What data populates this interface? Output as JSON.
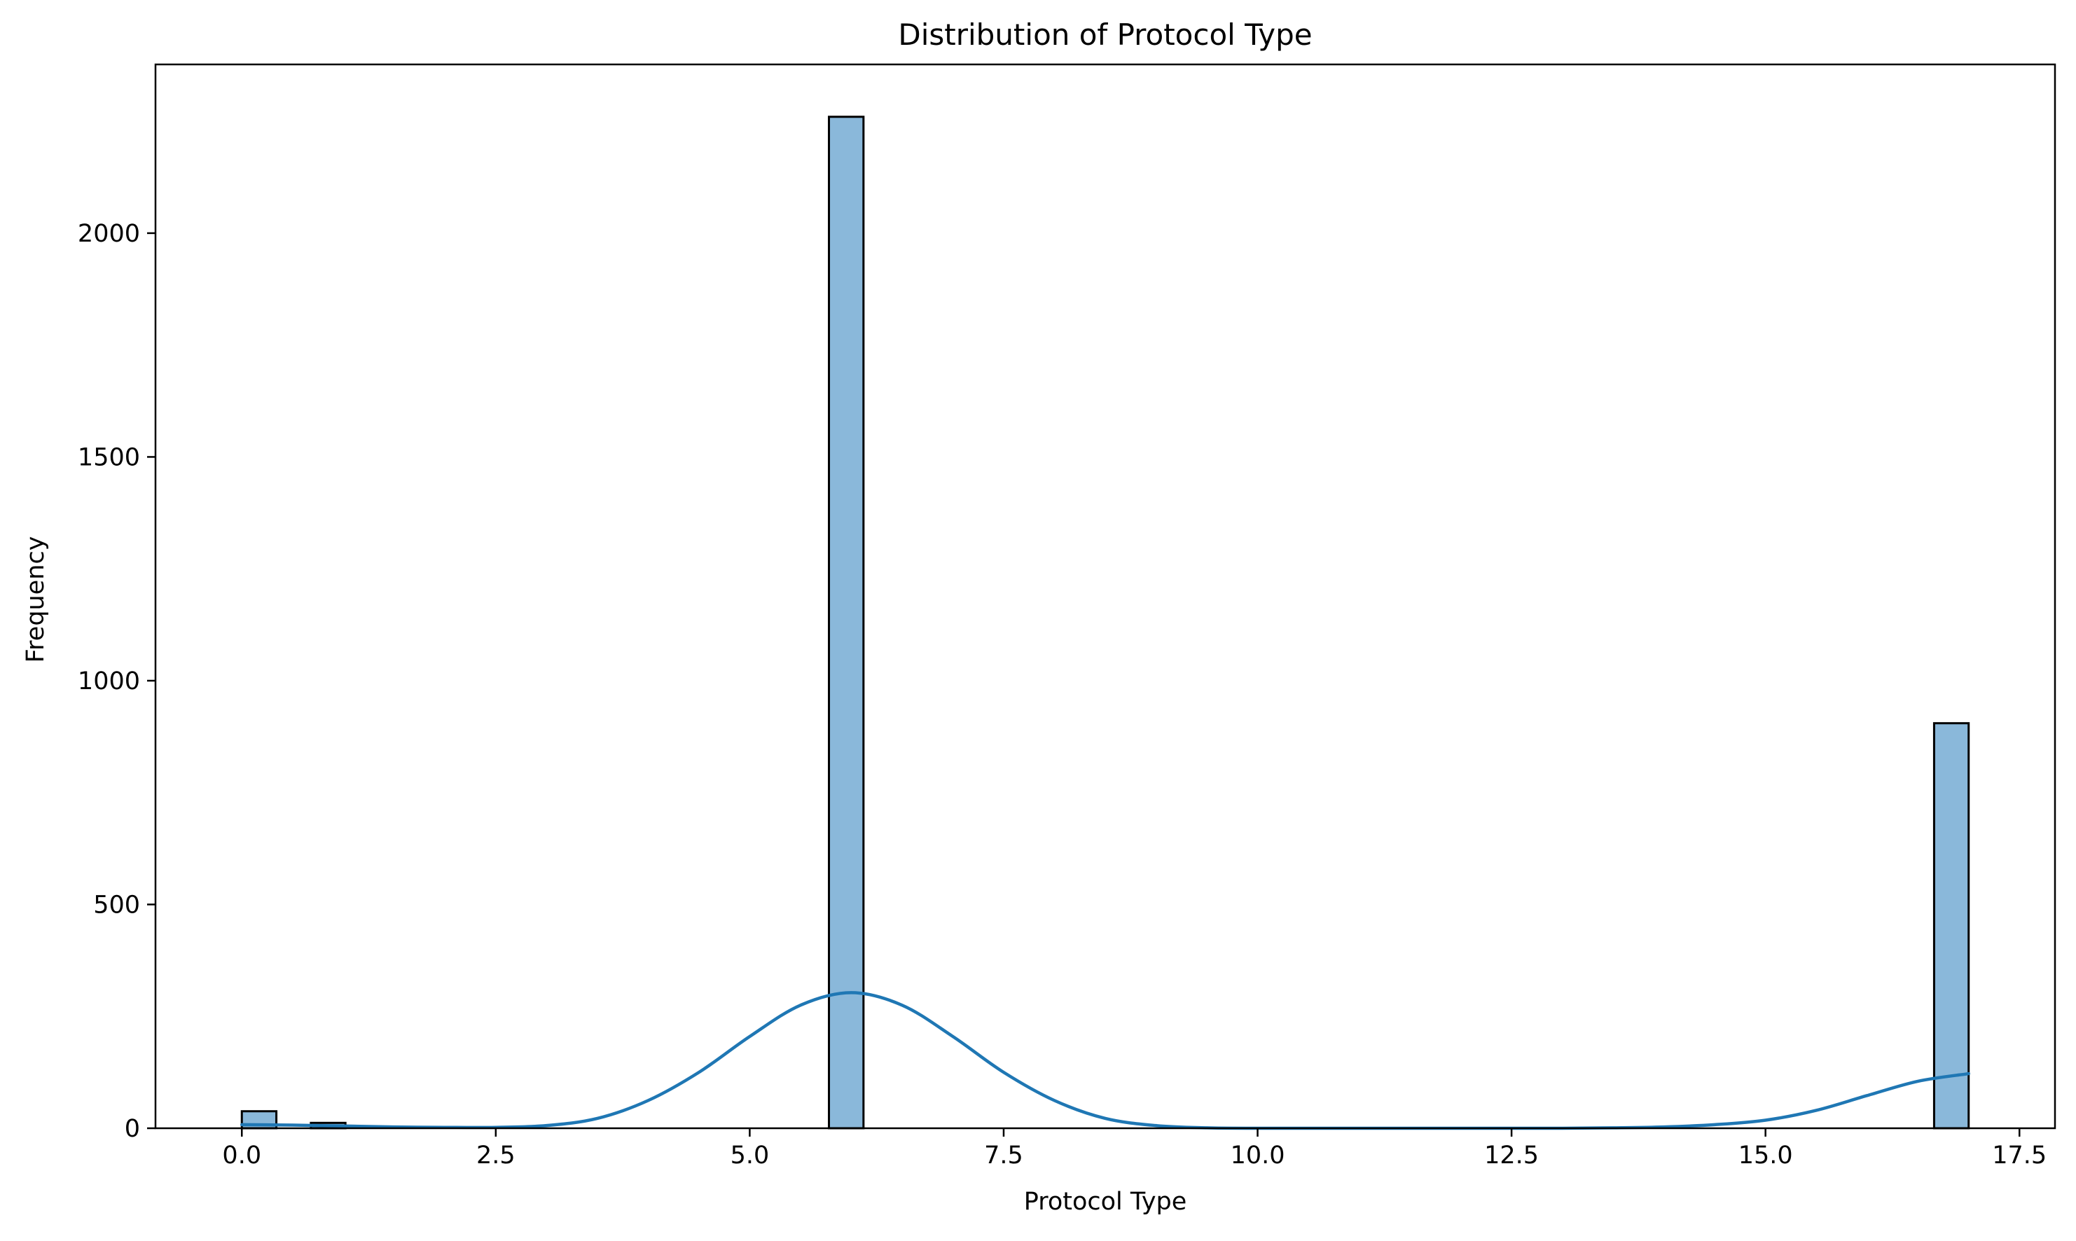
{
  "chart_data": {
    "type": "bar",
    "title": "Distribution of Protocol Type",
    "xlabel": "Protocol Type",
    "ylabel": "Frequency",
    "xlim": [
      -0.85,
      17.85
    ],
    "ylim": [
      0,
      2377
    ],
    "xticks": [
      0.0,
      2.5,
      5.0,
      7.5,
      10.0,
      12.5,
      15.0,
      17.5
    ],
    "xtick_labels": [
      "0.0",
      "2.5",
      "5.0",
      "7.5",
      "10.0",
      "12.5",
      "15.0",
      "17.5"
    ],
    "yticks": [
      0,
      500,
      1000,
      1500,
      2000
    ],
    "ytick_labels": [
      "0",
      "500",
      "1000",
      "1500",
      "2000"
    ],
    "grid": false,
    "legend": "none",
    "bins": [
      {
        "x0": 0.0,
        "x1": 0.34,
        "count": 38
      },
      {
        "x0": 0.68,
        "x1": 1.02,
        "count": 12
      },
      {
        "x0": 5.78,
        "x1": 6.12,
        "count": 2260
      },
      {
        "x0": 16.66,
        "x1": 17.0,
        "count": 905
      }
    ],
    "kde": {
      "x": [
        0,
        0.5,
        1,
        1.5,
        2,
        2.5,
        3,
        3.5,
        4,
        4.5,
        5,
        5.5,
        6,
        6.5,
        7,
        7.5,
        8,
        8.5,
        9,
        9.5,
        10,
        10.5,
        11,
        11.5,
        12,
        12.5,
        13,
        13.5,
        14,
        14.5,
        15,
        15.5,
        16,
        16.5,
        17
      ],
      "y": [
        8,
        7,
        5,
        3,
        2,
        2,
        6,
        22,
        62,
        125,
        205,
        275,
        303,
        275,
        205,
        125,
        62,
        22,
        6,
        1,
        0,
        0,
        0,
        0,
        0,
        0,
        0,
        1,
        3,
        8,
        18,
        40,
        73,
        105,
        122
      ]
    },
    "colors": {
      "bar_fill": "#8ab8da",
      "bar_edge": "#000000",
      "kde_line": "#1f77b4"
    }
  }
}
